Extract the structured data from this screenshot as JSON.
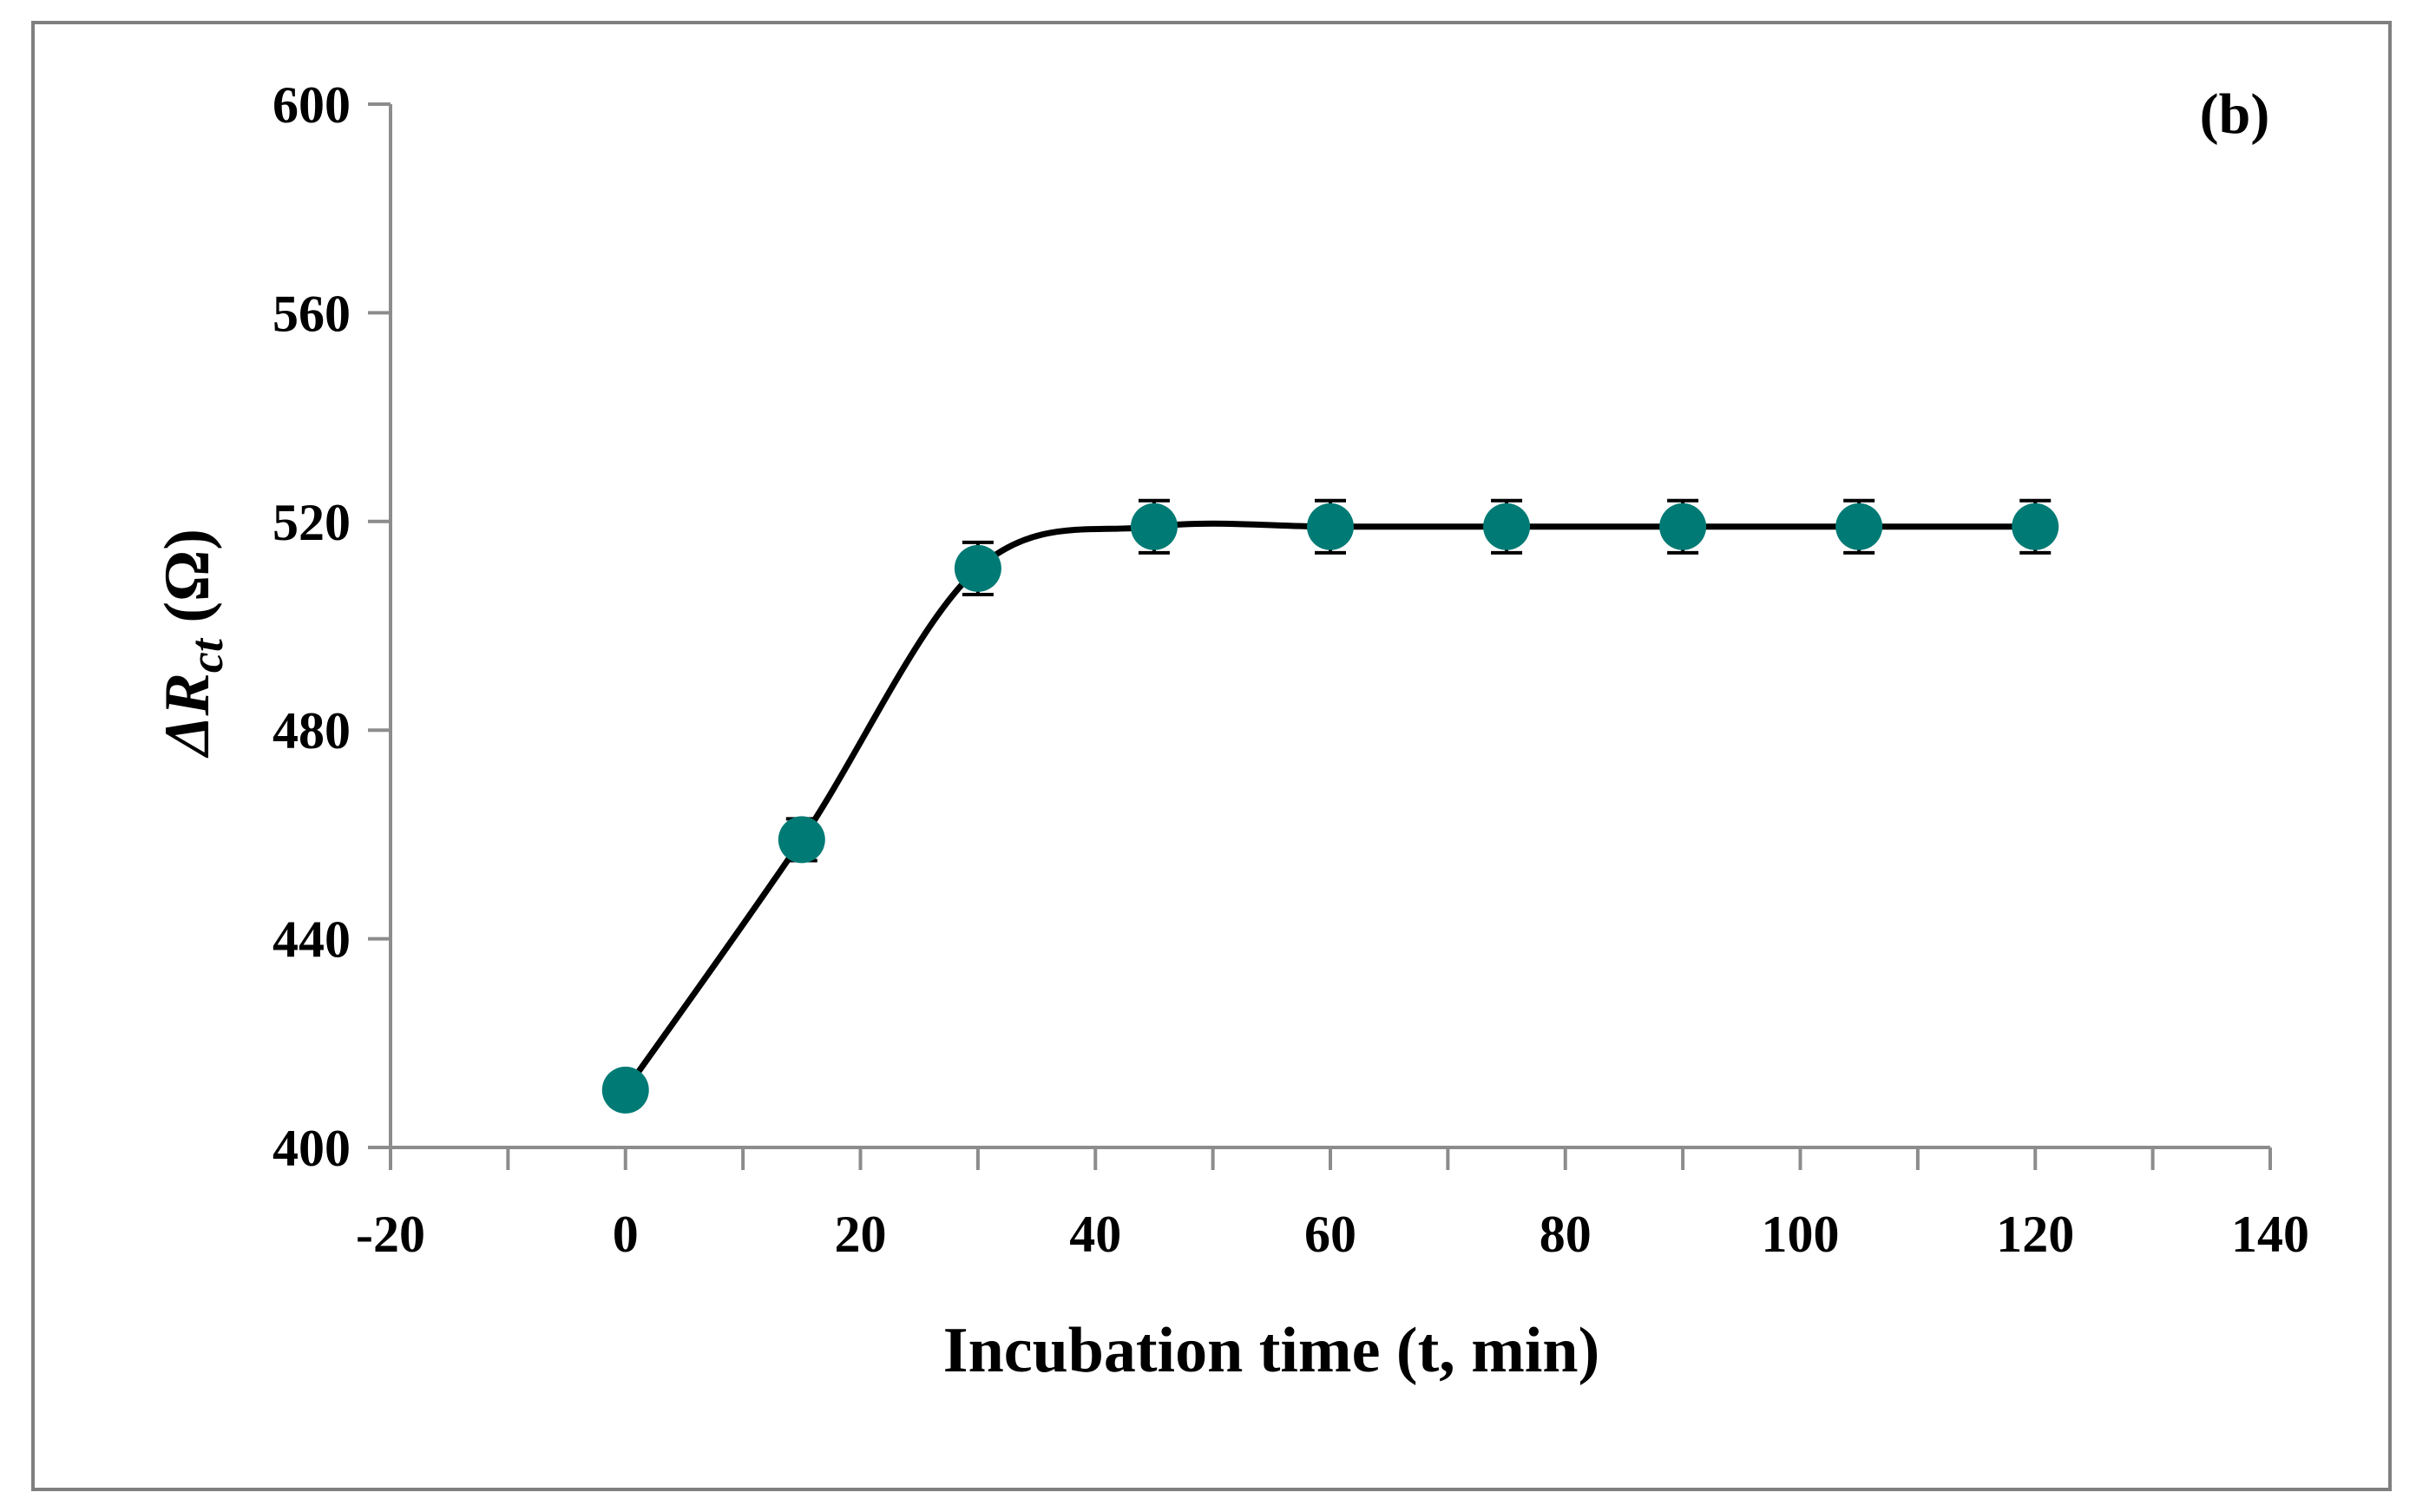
{
  "chart_data": {
    "type": "scatter",
    "title": "",
    "panel_label": "(b)",
    "xlabel": "Incubation time (t, min)",
    "ylabel": {
      "delta": "ΔR",
      "subscript": "ct",
      "unit": " (Ω)"
    },
    "xlim": [
      -20,
      140
    ],
    "ylim": [
      400,
      600
    ],
    "x_ticks": [
      -20,
      0,
      20,
      40,
      60,
      80,
      100,
      120,
      140
    ],
    "x_tick_labels": [
      "-20",
      "0",
      "20",
      "40",
      "60",
      "80",
      "100",
      "120",
      "140"
    ],
    "y_ticks": [
      400,
      440,
      480,
      520,
      560,
      600
    ],
    "y_tick_labels": [
      "400",
      "440",
      "480",
      "520",
      "560",
      "600"
    ],
    "grid": false,
    "legend": "none",
    "series": [
      {
        "name": "ΔRct",
        "marker": "circle",
        "color": "#007a74",
        "line": "smooth",
        "line_color": "#000000",
        "x": [
          0,
          15,
          30,
          45,
          60,
          75,
          90,
          105,
          120
        ],
        "y": [
          411,
          459,
          511,
          519,
          519,
          519,
          519,
          519,
          519
        ],
        "error": [
          3,
          4,
          5,
          5,
          5,
          5,
          5,
          5,
          5
        ]
      }
    ]
  }
}
